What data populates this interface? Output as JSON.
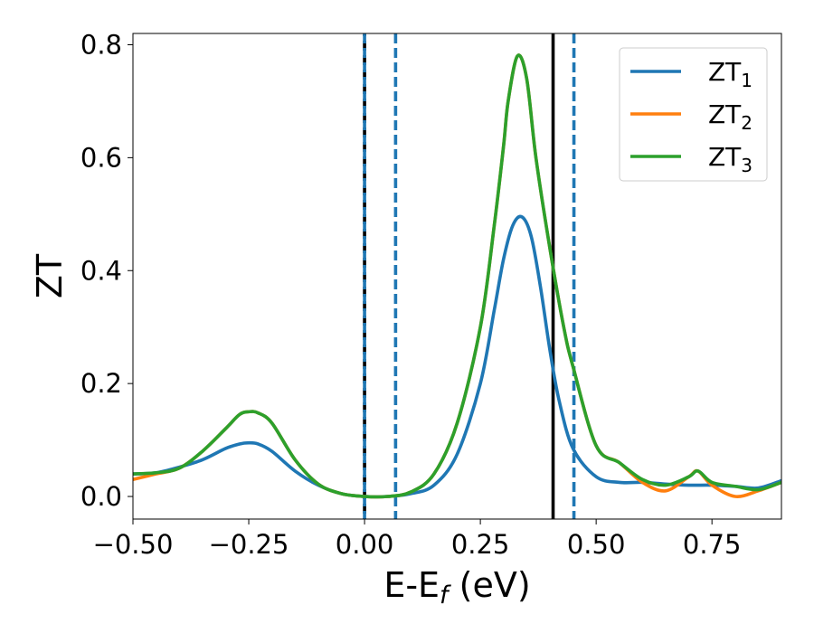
{
  "chart_data": {
    "type": "line",
    "title": "",
    "xlabel": "E-E",
    "xlabel_sub": "f",
    "xlabel_unit": "(eV)",
    "ylabel": "ZT",
    "xlim": [
      -0.5,
      0.9
    ],
    "ylim": [
      -0.04,
      0.82
    ],
    "xticks": [
      -0.5,
      -0.25,
      0.0,
      0.25,
      0.5,
      0.75
    ],
    "xtick_labels": [
      "−0.50",
      "−0.25",
      "0.00",
      "0.25",
      "0.50",
      "0.75"
    ],
    "yticks": [
      0.0,
      0.2,
      0.4,
      0.6,
      0.8
    ],
    "ytick_labels": [
      "0.0",
      "0.2",
      "0.4",
      "0.6",
      "0.8"
    ],
    "grid": false,
    "legend_position": "top-right",
    "vlines": [
      {
        "x": 0.0,
        "color": "#000000",
        "style": "dashed-overlay"
      },
      {
        "x": 0.0,
        "color": "#1f77b4",
        "style": "dashed"
      },
      {
        "x": 0.067,
        "color": "#1f77b4",
        "style": "dashed"
      },
      {
        "x": 0.407,
        "color": "#000000",
        "style": "solid"
      },
      {
        "x": 0.452,
        "color": "#1f77b4",
        "style": "dashed"
      }
    ],
    "series": [
      {
        "name": "ZT",
        "name_sub": "1",
        "color": "#1f77b4",
        "x": [
          -0.5,
          -0.45,
          -0.4,
          -0.35,
          -0.3,
          -0.27,
          -0.25,
          -0.23,
          -0.2,
          -0.15,
          -0.1,
          -0.05,
          0.0,
          0.05,
          0.1,
          0.15,
          0.2,
          0.25,
          0.28,
          0.3,
          0.32,
          0.34,
          0.36,
          0.38,
          0.4,
          0.42,
          0.45,
          0.5,
          0.55,
          0.6,
          0.65,
          0.7,
          0.75,
          0.8,
          0.85,
          0.9
        ],
        "y": [
          0.04,
          0.042,
          0.052,
          0.065,
          0.085,
          0.093,
          0.095,
          0.093,
          0.08,
          0.045,
          0.02,
          0.005,
          0.0,
          0.0,
          0.005,
          0.02,
          0.075,
          0.2,
          0.33,
          0.42,
          0.48,
          0.495,
          0.46,
          0.37,
          0.26,
          0.17,
          0.085,
          0.035,
          0.025,
          0.025,
          0.022,
          0.02,
          0.02,
          0.018,
          0.015,
          0.028
        ]
      },
      {
        "name": "ZT",
        "name_sub": "2",
        "color": "#ff7f0e",
        "x": [
          -0.5,
          -0.45,
          -0.4,
          -0.35,
          -0.3,
          -0.27,
          -0.25,
          -0.23,
          -0.2,
          -0.15,
          -0.1,
          -0.05,
          0.0,
          0.05,
          0.1,
          0.15,
          0.2,
          0.25,
          0.28,
          0.3,
          0.31,
          0.33,
          0.35,
          0.37,
          0.4,
          0.43,
          0.45,
          0.5,
          0.55,
          0.6,
          0.65,
          0.7,
          0.72,
          0.75,
          0.8,
          0.85,
          0.9
        ],
        "y": [
          0.03,
          0.04,
          0.05,
          0.08,
          0.12,
          0.145,
          0.15,
          0.148,
          0.13,
          0.065,
          0.022,
          0.005,
          0.0,
          0.0,
          0.008,
          0.04,
          0.13,
          0.3,
          0.48,
          0.62,
          0.7,
          0.78,
          0.74,
          0.6,
          0.44,
          0.3,
          0.23,
          0.09,
          0.06,
          0.025,
          0.01,
          0.035,
          0.045,
          0.02,
          0.0,
          0.01,
          0.025
        ]
      },
      {
        "name": "ZT",
        "name_sub": "3",
        "color": "#2ca02c",
        "x": [
          -0.5,
          -0.45,
          -0.4,
          -0.35,
          -0.3,
          -0.27,
          -0.25,
          -0.23,
          -0.2,
          -0.15,
          -0.1,
          -0.05,
          0.0,
          0.05,
          0.1,
          0.15,
          0.2,
          0.25,
          0.28,
          0.3,
          0.31,
          0.33,
          0.35,
          0.37,
          0.4,
          0.43,
          0.45,
          0.5,
          0.55,
          0.6,
          0.65,
          0.7,
          0.72,
          0.75,
          0.8,
          0.85,
          0.9
        ],
        "y": [
          0.04,
          0.042,
          0.05,
          0.08,
          0.12,
          0.145,
          0.15,
          0.148,
          0.13,
          0.065,
          0.022,
          0.005,
          0.0,
          0.0,
          0.008,
          0.04,
          0.13,
          0.3,
          0.48,
          0.62,
          0.7,
          0.78,
          0.74,
          0.6,
          0.44,
          0.3,
          0.23,
          0.09,
          0.06,
          0.03,
          0.02,
          0.035,
          0.045,
          0.025,
          0.018,
          0.012,
          0.025
        ]
      }
    ]
  }
}
